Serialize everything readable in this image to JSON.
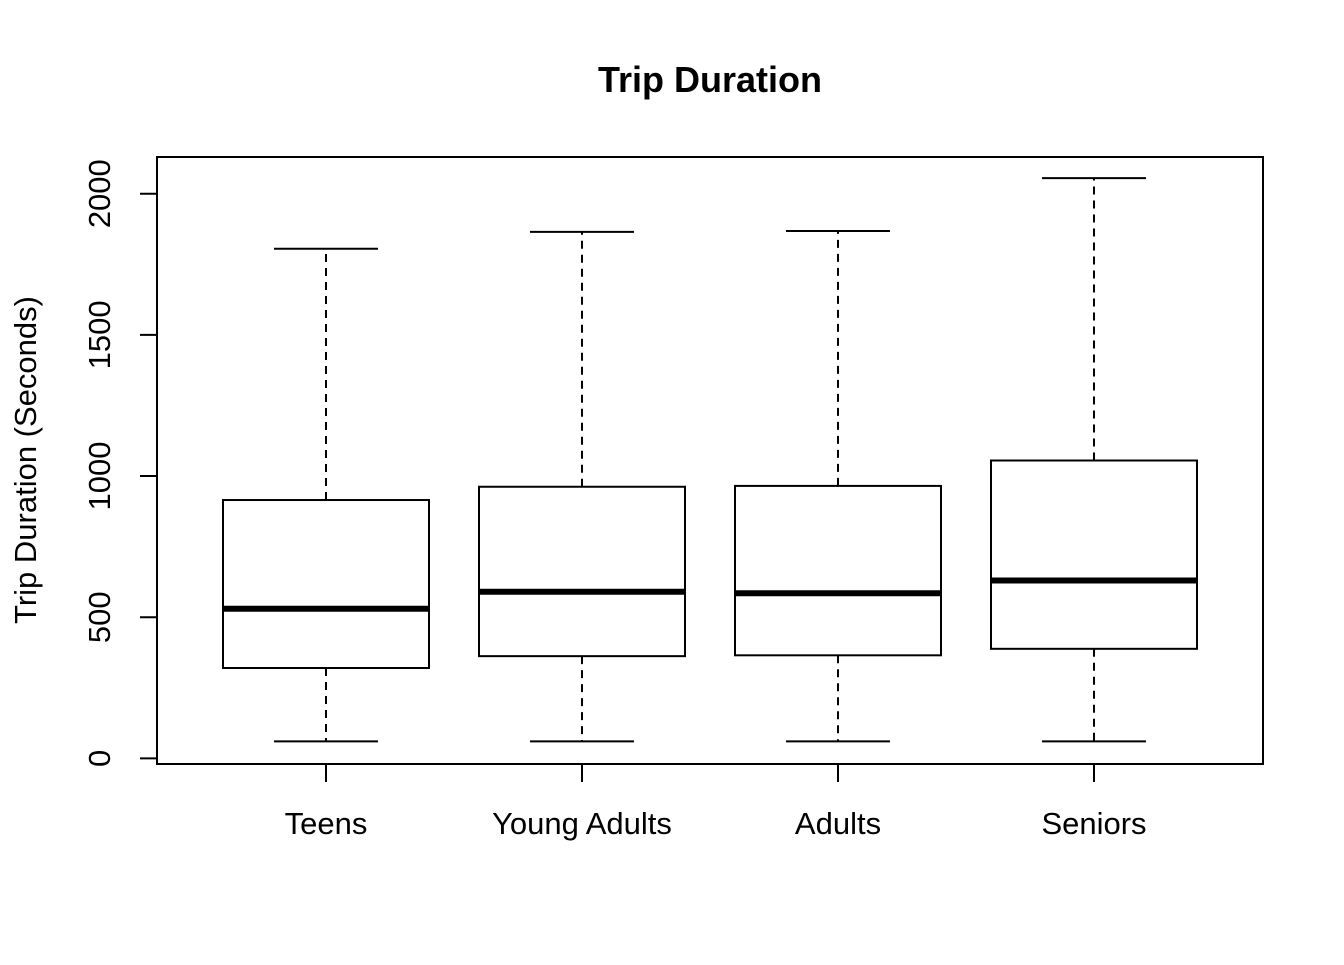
{
  "chart_data": {
    "type": "box",
    "title": "Trip Duration",
    "xlabel": "",
    "ylabel": "Trip Duration (Seconds)",
    "ylim": [
      -20,
      2130
    ],
    "y_ticks": [
      0,
      500,
      1000,
      1500,
      2000
    ],
    "y_tick_labels": [
      "0",
      "500",
      "1000",
      "1500",
      "2000"
    ],
    "grid": false,
    "categories": [
      "Teens",
      "Young Adults",
      "Adults",
      "Seniors"
    ],
    "boxes": [
      {
        "category": "Teens",
        "whisker_low": 60,
        "q1": 320,
        "median": 530,
        "q3": 915,
        "whisker_high": 1805
      },
      {
        "category": "Young Adults",
        "whisker_low": 60,
        "q1": 362,
        "median": 590,
        "q3": 962,
        "whisker_high": 1865
      },
      {
        "category": "Adults",
        "whisker_low": 60,
        "q1": 365,
        "median": 585,
        "q3": 965,
        "whisker_high": 1868
      },
      {
        "category": "Seniors",
        "whisker_low": 60,
        "q1": 388,
        "median": 630,
        "q3": 1055,
        "whisker_high": 2055
      }
    ]
  }
}
